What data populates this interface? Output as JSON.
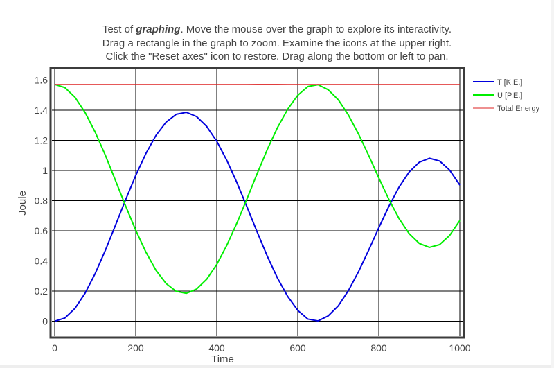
{
  "caption": {
    "line1_prefix": "Test of ",
    "line1_em": "graphing",
    "line1_suffix": ". Move the mouse over the graph to explore its interactivity.",
    "line2": "Drag a rectangle in the graph to zoom. Examine the icons at the upper right.",
    "line3": "Click the \"Reset axes\" icon to restore. Drag along the bottom or left to pan."
  },
  "chart_data": {
    "type": "line",
    "title": "",
    "xlabel": "Time",
    "ylabel": "Joule",
    "xlim": [
      0,
      1000
    ],
    "ylim": [
      -0.11,
      1.67
    ],
    "grid": true,
    "legend_position": "right",
    "x_ticks": [
      0,
      200,
      400,
      600,
      800,
      1000
    ],
    "x_tick_labels": [
      "0",
      "200",
      "400",
      "600",
      "800",
      "1000"
    ],
    "y_ticks": [
      0,
      0.2,
      0.4,
      0.6,
      0.8,
      1,
      1.2,
      1.4,
      1.6
    ],
    "y_tick_labels": [
      "0",
      "0.2",
      "0.4",
      "0.6",
      "0.8",
      "1",
      "1.2",
      "1.4",
      "1.6"
    ],
    "x": [
      0,
      25,
      50,
      75,
      100,
      125,
      150,
      175,
      200,
      225,
      250,
      275,
      300,
      325,
      350,
      375,
      400,
      425,
      450,
      475,
      500,
      525,
      550,
      575,
      600,
      625,
      650,
      675,
      700,
      725,
      750,
      775,
      800,
      825,
      850,
      875,
      900,
      925,
      950,
      975,
      1000
    ],
    "series": [
      {
        "name": "T [K.E.]",
        "color": "#0000dd",
        "values": [
          0.0,
          0.021,
          0.085,
          0.186,
          0.317,
          0.47,
          0.637,
          0.806,
          0.967,
          1.112,
          1.233,
          1.321,
          1.373,
          1.386,
          1.358,
          1.293,
          1.194,
          1.066,
          0.918,
          0.756,
          0.59,
          0.43,
          0.286,
          0.165,
          0.072,
          0.014,
          0.002,
          0.035,
          0.102,
          0.203,
          0.329,
          0.471,
          0.62,
          0.763,
          0.89,
          0.99,
          1.055,
          1.081,
          1.063,
          1.002,
          0.903
        ]
      },
      {
        "name": "U [P.E.]",
        "color": "#00ee00",
        "values": [
          1.571,
          1.55,
          1.486,
          1.385,
          1.254,
          1.101,
          0.934,
          0.765,
          0.604,
          0.459,
          0.338,
          0.25,
          0.198,
          0.185,
          0.213,
          0.278,
          0.377,
          0.505,
          0.653,
          0.815,
          0.981,
          1.141,
          1.285,
          1.406,
          1.499,
          1.557,
          1.569,
          1.536,
          1.469,
          1.368,
          1.242,
          1.1,
          0.951,
          0.808,
          0.681,
          0.581,
          0.516,
          0.49,
          0.508,
          0.569,
          0.668
        ]
      },
      {
        "name": "Total Energy",
        "color": "#dd2222",
        "values": [
          1.571,
          1.571,
          1.571,
          1.571,
          1.571,
          1.571,
          1.571,
          1.571,
          1.571,
          1.571,
          1.571,
          1.571,
          1.571,
          1.571,
          1.571,
          1.571,
          1.571,
          1.571,
          1.571,
          1.571,
          1.572,
          1.572,
          1.572,
          1.571,
          1.571,
          1.571,
          1.571,
          1.571,
          1.571,
          1.571,
          1.571,
          1.571,
          1.571,
          1.571,
          1.571,
          1.571,
          1.571,
          1.571,
          1.571,
          1.571,
          1.571
        ]
      }
    ]
  }
}
